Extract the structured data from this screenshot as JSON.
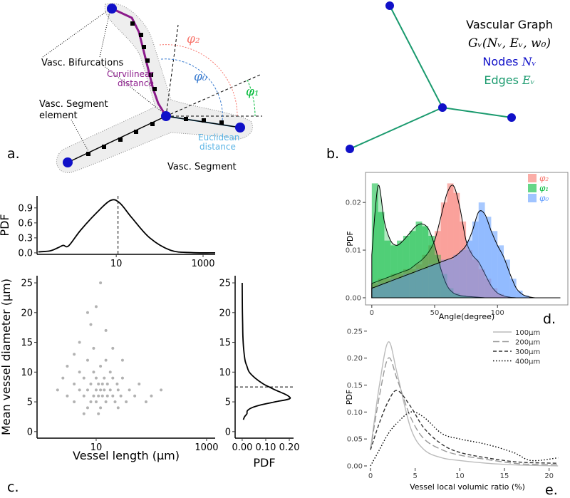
{
  "diagram_a": {
    "panel": "a.",
    "bifurcations": "Vasc. Bifurcations",
    "curvilinear": [
      "Curvilinear",
      "distance"
    ],
    "segment_element": [
      "Vasc. Segment",
      "element"
    ],
    "euclidean": [
      "Euclidean",
      "distance"
    ],
    "segment": "Vasc. Segment",
    "angles": [
      "φ₂",
      "φ₀",
      "φ₁"
    ]
  },
  "diagram_b": {
    "panel": "b.",
    "title": "Vascular Graph",
    "formula": "Gᵥ(Nᵥ, Eᵥ, w₀)",
    "nodes": [
      "Nodes",
      "Nᵥ"
    ],
    "edges": [
      "Edges",
      "Eᵥ"
    ]
  },
  "chart_data": [
    {
      "type": "line",
      "ylabel": "PDF",
      "xscale": "log",
      "color": "#000000",
      "x": [
        0.16,
        0.3,
        0.45,
        0.6,
        0.8,
        1.5,
        3.5,
        7.4,
        12,
        23,
        59,
        180,
        550,
        1900
      ],
      "values": [
        0.02,
        0.04,
        0.1,
        0.15,
        0.14,
        0.45,
        0.8,
        1.05,
        1.0,
        0.7,
        0.3,
        0.05,
        0.005,
        0
      ],
      "vline": 11,
      "xlim": [
        0.15,
        1900
      ],
      "ylim": [
        -0.03,
        1.14
      ],
      "xticks": [
        10,
        1000
      ],
      "yticks": [
        {
          "value": 0,
          "label": "0.0"
        },
        0.3,
        0.6,
        0.9
      ]
    },
    {
      "type": "scatter",
      "panel": "c.",
      "xlabel": "Vessel length (μm)",
      "ylabel": "Mean vessel diameter (μm)",
      "xscale": "log",
      "color": "#000000",
      "x": [
        2,
        2.5,
        3,
        4,
        4,
        5,
        5,
        6,
        6,
        7,
        7,
        7,
        8,
        8,
        9,
        9,
        9,
        10,
        10,
        10,
        11,
        11,
        12,
        12,
        12,
        13,
        13,
        14,
        14,
        15,
        15,
        16,
        16,
        18,
        18,
        20,
        20,
        22,
        24,
        25,
        28,
        30,
        35,
        40,
        50,
        60,
        80,
        100,
        5,
        8,
        10,
        15,
        20,
        6,
        11,
        25,
        3,
        4,
        30,
        150,
        12,
        7
      ],
      "values": [
        7,
        9,
        6,
        8,
        5,
        7,
        10,
        6,
        9,
        4,
        7,
        12,
        8,
        5,
        6,
        10,
        14,
        7,
        9,
        5,
        8,
        6,
        7,
        11,
        4,
        8,
        6,
        9,
        7,
        5,
        12,
        8,
        6,
        7,
        10,
        6,
        9,
        5,
        8,
        7,
        6,
        9,
        5,
        7,
        6,
        8,
        5,
        6,
        15,
        18,
        21,
        17,
        14,
        3,
        3,
        4,
        11,
        13,
        12,
        7,
        25,
        20
      ],
      "xlim": [
        0.85,
        1430
      ],
      "ylim": [
        -1.1,
        26.2
      ],
      "xticks": [
        10,
        1000
      ],
      "yticks": [
        0,
        5,
        10,
        15,
        20,
        25
      ]
    },
    {
      "type": "line",
      "orientation": "vertical",
      "xlabel": "PDF",
      "color": "#000000",
      "x": [
        2,
        2.5,
        3,
        3.5,
        4,
        4.5,
        5,
        5.5,
        6,
        6.5,
        7,
        7.5,
        8,
        9,
        10,
        11,
        12,
        14,
        16,
        18,
        20,
        22,
        25
      ],
      "values": [
        0.005,
        0.01,
        0.02,
        0.022,
        0.04,
        0.08,
        0.14,
        0.2,
        0.195,
        0.17,
        0.14,
        0.115,
        0.09,
        0.055,
        0.03,
        0.02,
        0.012,
        0.006,
        0.003,
        0.002,
        0.001,
        0.0005,
        0
      ],
      "hline": 7.5,
      "xlim": [
        -0.03,
        0.218
      ],
      "ylim": [
        -1.1,
        26.2
      ],
      "xticks": [
        {
          "value": 0,
          "label": "0.00"
        },
        {
          "value": 0.1,
          "label": "0.10"
        },
        {
          "value": 0.2,
          "label": "0.20"
        }
      ],
      "yticks": [
        0,
        5,
        10,
        15,
        20,
        25
      ]
    },
    {
      "type": "histogram",
      "panel": "d.",
      "xlabel": "Angle(degree)",
      "ylabel": "PDF",
      "legend": "top-right",
      "bins": [
        0,
        5,
        10,
        15,
        20,
        25,
        30,
        35,
        40,
        45,
        50,
        55,
        60,
        65,
        70,
        75,
        80,
        85,
        90,
        95,
        100,
        105,
        110,
        115,
        120,
        125
      ],
      "density_x": [
        0,
        5,
        10,
        15,
        20,
        25,
        30,
        35,
        40,
        45,
        50,
        55,
        60,
        65,
        70,
        75,
        80,
        85,
        90,
        95,
        100,
        105,
        110,
        115,
        120,
        125,
        130,
        135,
        140,
        145,
        150
      ],
      "series": [
        {
          "name": "φ₂",
          "color": "#f8766d",
          "values": [
            0.003,
            0.004,
            0.004,
            0.005,
            0.005,
            0.006,
            0.006,
            0.007,
            0.009,
            0.011,
            0.014,
            0.02,
            0.024,
            0.022,
            0.016,
            0.01,
            0.008,
            0.006,
            0.004,
            0.002,
            0.0008,
            0.0003,
            0,
            0,
            0
          ],
          "density": [
            0.003,
            0.0035,
            0.004,
            0.0045,
            0.005,
            0.0055,
            0.006,
            0.007,
            0.008,
            0.0095,
            0.012,
            0.017,
            0.022,
            0.0235,
            0.019,
            0.012,
            0.009,
            0.0075,
            0.005,
            0.0025,
            0.001,
            0.0004,
            0.0001,
            0,
            0,
            0,
            0,
            0,
            0,
            0,
            0
          ]
        },
        {
          "name": "φ₁",
          "color": "#00ba38",
          "values": [
            0.024,
            0.018,
            0.012,
            0.011,
            0.012,
            0.013,
            0.014,
            0.016,
            0.015,
            0.013,
            0.009,
            0.005,
            0.002,
            0.001,
            0.0005,
            0.0003,
            0,
            0,
            0,
            0,
            0,
            0,
            0,
            0,
            0
          ],
          "density": [
            0.009,
            0.0235,
            0.016,
            0.012,
            0.011,
            0.012,
            0.0135,
            0.015,
            0.0155,
            0.0145,
            0.011,
            0.006,
            0.0025,
            0.001,
            0.0005,
            0.0003,
            0.0002,
            0.0001,
            0,
            0,
            0,
            0,
            0,
            0,
            0,
            0,
            0,
            0,
            0,
            0,
            0
          ]
        },
        {
          "name": "φ₀",
          "color": "#619cff",
          "values": [
            0.002,
            0.003,
            0.003,
            0.004,
            0.004,
            0.005,
            0.005,
            0.006,
            0.006,
            0.007,
            0.007,
            0.008,
            0.008,
            0.009,
            0.01,
            0.012,
            0.016,
            0.02,
            0.017,
            0.014,
            0.011,
            0.008,
            0.004,
            0.0015,
            0.0005
          ],
          "density": [
            0.002,
            0.0025,
            0.003,
            0.0035,
            0.004,
            0.0045,
            0.005,
            0.0055,
            0.006,
            0.0065,
            0.007,
            0.0075,
            0.008,
            0.0085,
            0.0095,
            0.011,
            0.014,
            0.018,
            0.0175,
            0.014,
            0.011,
            0.0085,
            0.005,
            0.002,
            0.0007,
            0.0002,
            0,
            0,
            0,
            0,
            0
          ]
        }
      ],
      "xlim": [
        -5,
        156
      ],
      "ylim": [
        -0.0015,
        0.0263
      ],
      "xticks": [
        0,
        50,
        100
      ],
      "yticks": [
        {
          "value": 0,
          "label": "0.00"
        },
        {
          "value": 0.01,
          "label": "0.01"
        },
        {
          "value": 0.02,
          "label": "0.02"
        }
      ]
    },
    {
      "type": "line",
      "panel": "e.",
      "xlabel": "Vessel local volumic ratio (%)",
      "ylabel": "PDF",
      "legend": "top-right",
      "x": [
        0,
        1,
        2,
        3,
        4.5,
        6,
        8,
        10,
        13,
        16,
        18,
        21
      ],
      "series": [
        {
          "name": "100μm",
          "color": "#bbbbbb",
          "dash": "solid",
          "values": [
            0.03,
            0.15,
            0.23,
            0.17,
            0.07,
            0.03,
            0.015,
            0.01,
            0.005,
            0.002,
            0.001,
            0
          ]
        },
        {
          "name": "200μm",
          "color": "#999999",
          "dash": "long",
          "values": [
            0.03,
            0.13,
            0.2,
            0.16,
            0.09,
            0.05,
            0.03,
            0.02,
            0.012,
            0.005,
            0.003,
            0.002
          ]
        },
        {
          "name": "300μm",
          "color": "#333333",
          "dash": "dash",
          "values": [
            0.03,
            0.08,
            0.12,
            0.14,
            0.11,
            0.07,
            0.04,
            0.025,
            0.015,
            0.008,
            0.006,
            0.005
          ]
        },
        {
          "name": "400μm",
          "color": "#000000",
          "dash": "dot",
          "values": [
            0,
            0.03,
            0.06,
            0.08,
            0.1,
            0.09,
            0.06,
            0.05,
            0.04,
            0.025,
            0.01,
            0.015
          ]
        }
      ],
      "xlim": [
        -0.4,
        22.1
      ],
      "ylim": [
        -0.004,
        0.259
      ],
      "xticks": [
        0,
        5,
        10,
        15,
        20
      ],
      "yticks": [
        {
          "value": 0,
          "label": "0.00"
        },
        {
          "value": 0.05,
          "label": "0.05"
        },
        {
          "value": 0.1,
          "label": "0.10"
        },
        {
          "value": 0.15,
          "label": "0.15"
        },
        {
          "value": 0.2,
          "label": "0.20"
        },
        {
          "value": 0.25,
          "label": "0.25"
        }
      ]
    }
  ]
}
